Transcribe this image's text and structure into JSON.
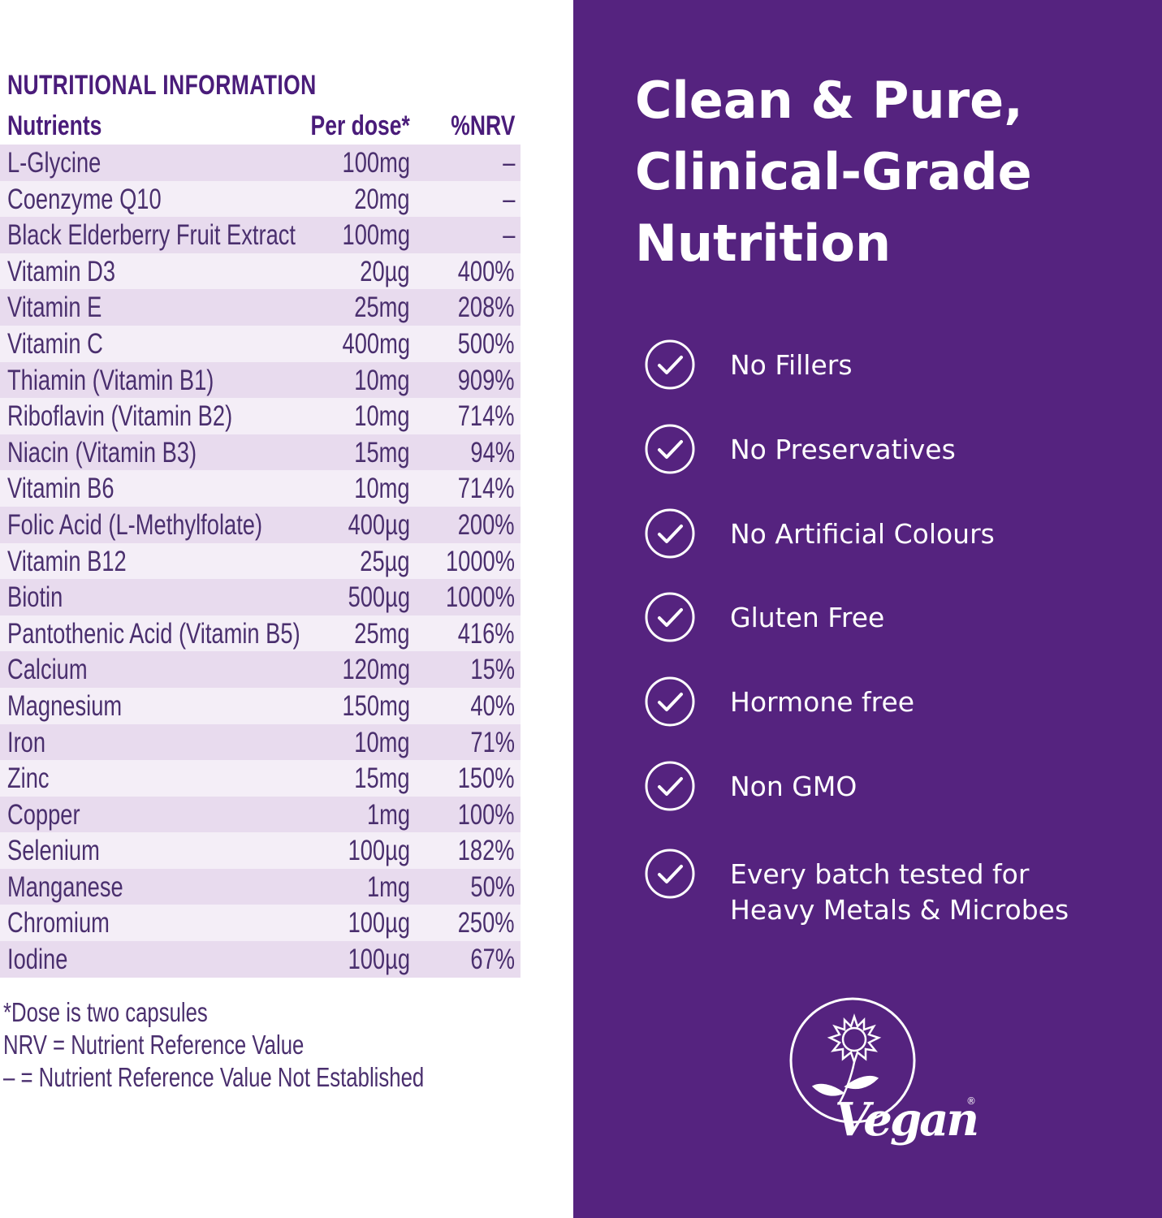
{
  "nutrition": {
    "title": "NUTRITIONAL INFORMATION",
    "headers": {
      "nutrient": "Nutrients",
      "dose": "Per dose*",
      "nrv": "%NRV"
    },
    "rows": [
      {
        "nutrient": "L-Glycine",
        "dose": "100mg",
        "nrv": "–"
      },
      {
        "nutrient": "Coenzyme Q10",
        "dose": "20mg",
        "nrv": "–"
      },
      {
        "nutrient": "Black Elderberry Fruit Extract",
        "dose": "100mg",
        "nrv": "–"
      },
      {
        "nutrient": "Vitamin D3",
        "dose": "20µg",
        "nrv": "400%"
      },
      {
        "nutrient": "Vitamin E",
        "dose": "25mg",
        "nrv": "208%"
      },
      {
        "nutrient": "Vitamin C",
        "dose": "400mg",
        "nrv": "500%"
      },
      {
        "nutrient": "Thiamin (Vitamin B1)",
        "dose": "10mg",
        "nrv": "909%"
      },
      {
        "nutrient": "Riboflavin (Vitamin B2)",
        "dose": "10mg",
        "nrv": "714%"
      },
      {
        "nutrient": "Niacin (Vitamin B3)",
        "dose": "15mg",
        "nrv": "94%"
      },
      {
        "nutrient": "Vitamin B6",
        "dose": "10mg",
        "nrv": "714%"
      },
      {
        "nutrient": "Folic Acid (L-Methylfolate)",
        "dose": "400µg",
        "nrv": "200%"
      },
      {
        "nutrient": "Vitamin B12",
        "dose": "25µg",
        "nrv": "1000%"
      },
      {
        "nutrient": "Biotin",
        "dose": "500µg",
        "nrv": "1000%"
      },
      {
        "nutrient": "Pantothenic Acid (Vitamin B5)",
        "dose": "25mg",
        "nrv": "416%"
      },
      {
        "nutrient": "Calcium",
        "dose": "120mg",
        "nrv": "15%"
      },
      {
        "nutrient": "Magnesium",
        "dose": "150mg",
        "nrv": "40%"
      },
      {
        "nutrient": "Iron",
        "dose": "10mg",
        "nrv": "71%"
      },
      {
        "nutrient": "Zinc",
        "dose": "15mg",
        "nrv": "150%"
      },
      {
        "nutrient": "Copper",
        "dose": "1mg",
        "nrv": "100%"
      },
      {
        "nutrient": "Selenium",
        "dose": "100µg",
        "nrv": "182%"
      },
      {
        "nutrient": "Manganese",
        "dose": "1mg",
        "nrv": "50%"
      },
      {
        "nutrient": "Chromium",
        "dose": "100µg",
        "nrv": "250%"
      },
      {
        "nutrient": "Iodine",
        "dose": "100µg",
        "nrv": "67%"
      }
    ],
    "notes": [
      "*Dose is two capsules",
      "NRV = Nutrient Reference Value",
      "– = Nutrient Reference Value Not Established"
    ]
  },
  "panel": {
    "headline_lines": [
      "Clean & Pure,",
      "Clinical-Grade",
      "Nutrition"
    ],
    "features": [
      {
        "label": "No Fillers",
        "icon": "check-circle-icon"
      },
      {
        "label": "No Preservatives",
        "icon": "check-circle-icon"
      },
      {
        "label": "No Artificial Colours",
        "icon": "check-circle-icon"
      },
      {
        "label": "Gluten Free",
        "icon": "check-circle-icon"
      },
      {
        "label": "Hormone free",
        "icon": "check-circle-icon"
      },
      {
        "label": "Non GMO",
        "icon": "check-circle-icon"
      },
      {
        "label": "Every batch tested for\nHeavy Metals & Microbes",
        "icon": "check-circle-icon"
      }
    ],
    "vegan_logo_text": "Vegan®"
  },
  "colors": {
    "panel_bg": "#55237f",
    "title_purple": "#4a1c7a",
    "row_dark": "#e8dbee",
    "row_light": "#f4eef7"
  }
}
